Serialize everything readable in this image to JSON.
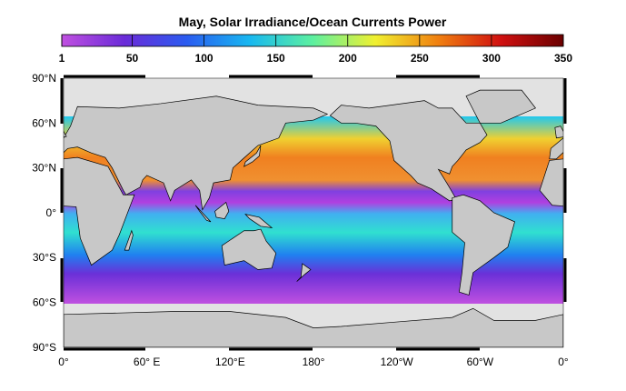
{
  "title": "May, Solar Irradiance/Ocean Currents Power",
  "colorbar": {
    "range": [
      1,
      350
    ],
    "ticks": [
      1,
      50,
      100,
      150,
      200,
      250,
      300,
      350
    ],
    "colors": [
      "#c050e0",
      "#6a2bd8",
      "#2a5cf0",
      "#18b8f0",
      "#5cf0a0",
      "#f0f030",
      "#f08010",
      "#d01010",
      "#6a0000"
    ]
  },
  "lat_labels": [
    "90°N",
    "60°N",
    "30°N",
    "0°",
    "30°S",
    "60°S",
    "90°S"
  ],
  "lon_labels": [
    "0°",
    "60° E",
    "120°E",
    "180°",
    "120°W",
    "60°W",
    "0°"
  ]
}
